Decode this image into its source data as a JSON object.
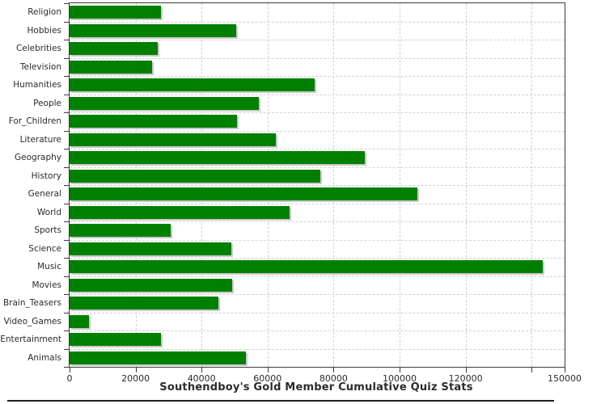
{
  "title": "Southendboy's Gold Member Cumulative Quiz Stats",
  "colors": {
    "bar": "#008000",
    "bar_shadow": "#c9c9c9",
    "gridline": "#cfcfcf",
    "axis": "#3a3a3a",
    "text": "#2b2b2b",
    "background": "#ffffff"
  },
  "chart_data": {
    "type": "bar",
    "orientation": "horizontal",
    "title": "Southendboy's Gold Member Cumulative Quiz Stats",
    "xlabel": "",
    "ylabel": "",
    "grid": true,
    "legend": false,
    "xlim": [
      0,
      150000
    ],
    "x_tick_interval": 20000,
    "x_tick_labels": [
      "0",
      "20000",
      "40000",
      "60000",
      "80000",
      "100000",
      "120000"
    ],
    "x_unlabeled_tick": 140000,
    "x_edge_tick": {
      "value": 150000,
      "label": "150000",
      "clipped_at_image_edge": true
    },
    "categories": [
      "Religion",
      "Hobbies",
      "Celebrities",
      "Television",
      "Humanities",
      "People",
      "For_Children",
      "Literature",
      "Geography",
      "History",
      "General",
      "World",
      "Sports",
      "Science",
      "Music",
      "Movies",
      "Brain_Teasers",
      "Video_Games",
      "Entertainment",
      "Animals"
    ],
    "values": [
      27600,
      50500,
      26700,
      25000,
      74200,
      57400,
      50800,
      62600,
      89500,
      76000,
      105400,
      66600,
      30600,
      49100,
      143500,
      49300,
      45200,
      6000,
      27700,
      53500
    ]
  }
}
